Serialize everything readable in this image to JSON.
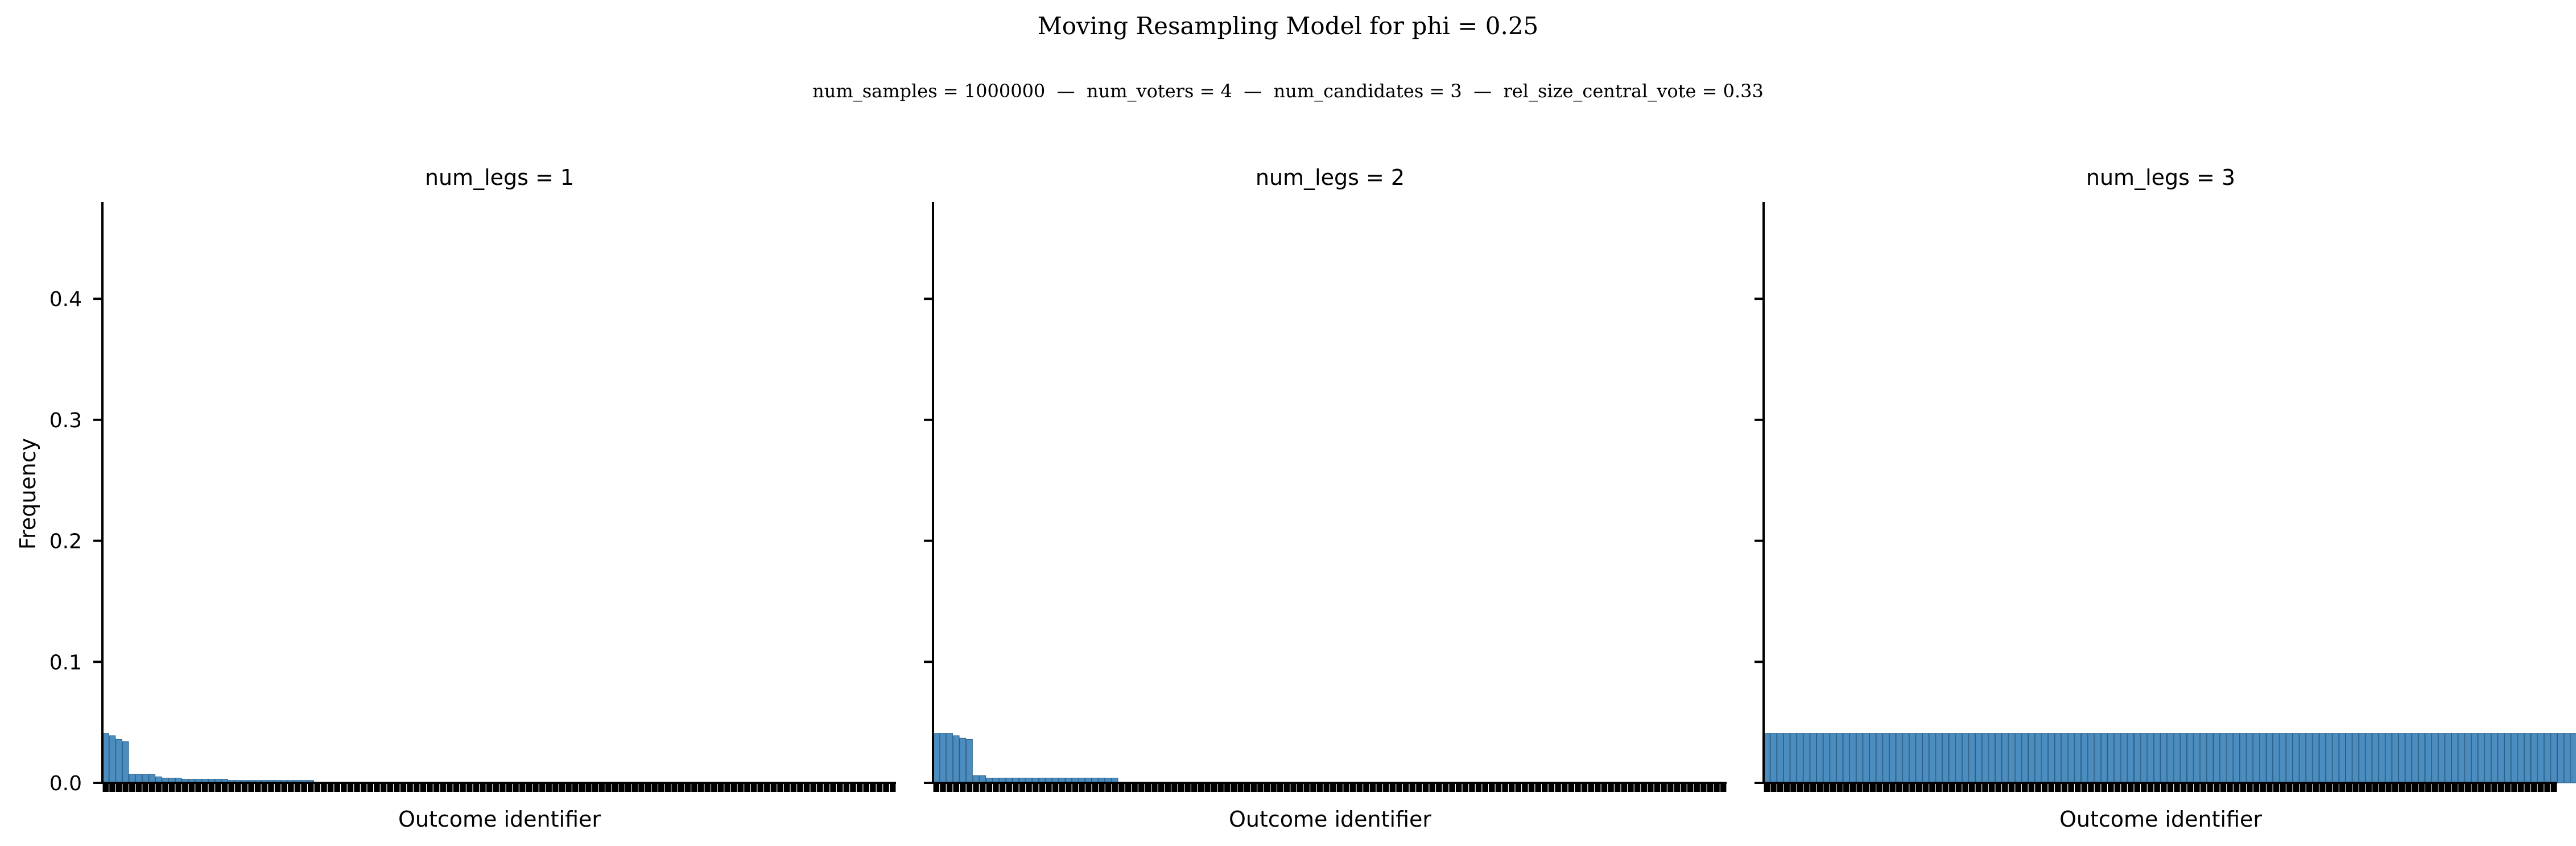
{
  "figure": {
    "title": "Moving Resampling Model for phi = 0.25",
    "subtitle": "num_samples = 1000000  —  num_voters = 4  —  num_candidates = 3  —  rel_size_central_vote = 0.33"
  },
  "colors": {
    "bar": "#4c8dbf",
    "bar_edge": "#2a5f8a",
    "axis": "#000000"
  },
  "chart_data": [
    {
      "type": "bar",
      "title": "num_legs = 1",
      "xlabel": "Outcome identifier",
      "ylabel": "Frequency",
      "ylim": [
        0,
        0.48
      ],
      "yticks": [
        0.0,
        0.1,
        0.2,
        0.3,
        0.4
      ],
      "ytick_labels": [
        "0.0",
        "0.1",
        "0.2",
        "0.3",
        "0.4"
      ],
      "num_categories": 120,
      "values": [
        0.041,
        0.039,
        0.036,
        0.034,
        0.007,
        0.007,
        0.007,
        0.007,
        0.005,
        0.004,
        0.004,
        0.004,
        0.003,
        0.003,
        0.003,
        0.003,
        0.003,
        0.003,
        0.003,
        0.002,
        0.002,
        0.002,
        0.002,
        0.002,
        0.002,
        0.002,
        0.002,
        0.002,
        0.002,
        0.002,
        0.002,
        0.002
      ],
      "grid": false
    },
    {
      "type": "bar",
      "title": "num_legs = 2",
      "xlabel": "Outcome identifier",
      "ylabel": "",
      "ylim": [
        0,
        0.48
      ],
      "yticks": [
        0.0,
        0.1,
        0.2,
        0.3,
        0.4
      ],
      "ytick_labels": [
        "",
        "",
        "",
        "",
        ""
      ],
      "num_categories": 120,
      "values": [
        0.041,
        0.041,
        0.041,
        0.039,
        0.037,
        0.036,
        0.006,
        0.006,
        0.004,
        0.004,
        0.004,
        0.004,
        0.004,
        0.004,
        0.004,
        0.004,
        0.004,
        0.004,
        0.004,
        0.004,
        0.004,
        0.004,
        0.004,
        0.004,
        0.004,
        0.004,
        0.004,
        0.004
      ],
      "grid": false
    },
    {
      "type": "bar",
      "title": "num_legs = 3",
      "xlabel": "Outcome identifier",
      "ylabel": "",
      "ylim": [
        0,
        0.48
      ],
      "yticks": [
        0.0,
        0.1,
        0.2,
        0.3,
        0.4
      ],
      "ytick_labels": [
        "",
        "",
        "",
        "",
        ""
      ],
      "num_categories": 120,
      "values": [
        0.041,
        0.041,
        0.041,
        0.041,
        0.041,
        0.041,
        0.041,
        0.041,
        0.041,
        0.041,
        0.041,
        0.041,
        0.041,
        0.041,
        0.041,
        0.041,
        0.041,
        0.041,
        0.041,
        0.041,
        0.041,
        0.041,
        0.041,
        0.041,
        0.041,
        0.041,
        0.041,
        0.041,
        0.041,
        0.041,
        0.041,
        0.041,
        0.041,
        0.041,
        0.041,
        0.041,
        0.041,
        0.041,
        0.041,
        0.041,
        0.041,
        0.041,
        0.041,
        0.041,
        0.041,
        0.041,
        0.041,
        0.041,
        0.041,
        0.041,
        0.041,
        0.041,
        0.041,
        0.041,
        0.041,
        0.041,
        0.041,
        0.041,
        0.041,
        0.041,
        0.041,
        0.041,
        0.041,
        0.041,
        0.041,
        0.041,
        0.041,
        0.041,
        0.041,
        0.041,
        0.041,
        0.041,
        0.041,
        0.041,
        0.041,
        0.041,
        0.041,
        0.041,
        0.041,
        0.041,
        0.041,
        0.041,
        0.041,
        0.041,
        0.041,
        0.041,
        0.041,
        0.041,
        0.041,
        0.041,
        0.041,
        0.041,
        0.041,
        0.041,
        0.041,
        0.041,
        0.041,
        0.041,
        0.041,
        0.041,
        0.041,
        0.041,
        0.041,
        0.041,
        0.041,
        0.041,
        0.041,
        0.041,
        0.041,
        0.041,
        0.041,
        0.041,
        0.041,
        0.041,
        0.041,
        0.041,
        0.041,
        0.041,
        0.041,
        0.041,
        0.041,
        0.041,
        0.041,
        0.041,
        0.041,
        0.041,
        0.041,
        0.041,
        0.041,
        0.041,
        0.041,
        0.041,
        0.041,
        0.041,
        0.041,
        0.041,
        0.041,
        0.041,
        0.041,
        0.041,
        0.041,
        0.041,
        0.041,
        0.041,
        0.041,
        0.041,
        0.041,
        0.041,
        0.041,
        0.041,
        0.041,
        0.041,
        0.041,
        0.041,
        0.041,
        0.041,
        0.041,
        0.041,
        0.041,
        0.041,
        0.041,
        0.041,
        0.041,
        0.041,
        0.041,
        0.041,
        0.041,
        0.041,
        0.041,
        0.041,
        0.041,
        0.041,
        0.041,
        0.041,
        0.041,
        0.041,
        0.041,
        0.041,
        0.041,
        0.041,
        0.041,
        0.041,
        0.041,
        0.041,
        0.041,
        0.041,
        0.041,
        0.041,
        0.041,
        0.041,
        0.041,
        0.041,
        0.041,
        0.041,
        0.041,
        0.041,
        0.041,
        0.041,
        0.041,
        0.041,
        0.041,
        0.041,
        0.041,
        0.041,
        0.041,
        0.041,
        0.041,
        0.041,
        0.041,
        0.041,
        0.041,
        0.041,
        0.041,
        0.041,
        0.041,
        0.041,
        0.041,
        0.041,
        0.041,
        0.041,
        0.041,
        0.041,
        0.041,
        0.041,
        0.041,
        0.041,
        0.041,
        0.041,
        0.041,
        0.041,
        0.041,
        0.041,
        0.041,
        0.041,
        0.041,
        0.041,
        0.041,
        0.041,
        0.041,
        0.041,
        0.041,
        0.041,
        0.041,
        0.041,
        0.041,
        0.041,
        0.041,
        0.041,
        0.041,
        0.041,
        0.041,
        0.041,
        0.041,
        0.041,
        0.041,
        0.041,
        0.041,
        0.041,
        0.041,
        0.041,
        0.041,
        0.041,
        0.041,
        0.041,
        0.041,
        0.041,
        0.041,
        0.041,
        0.041,
        0.041
      ],
      "grid": false
    }
  ]
}
